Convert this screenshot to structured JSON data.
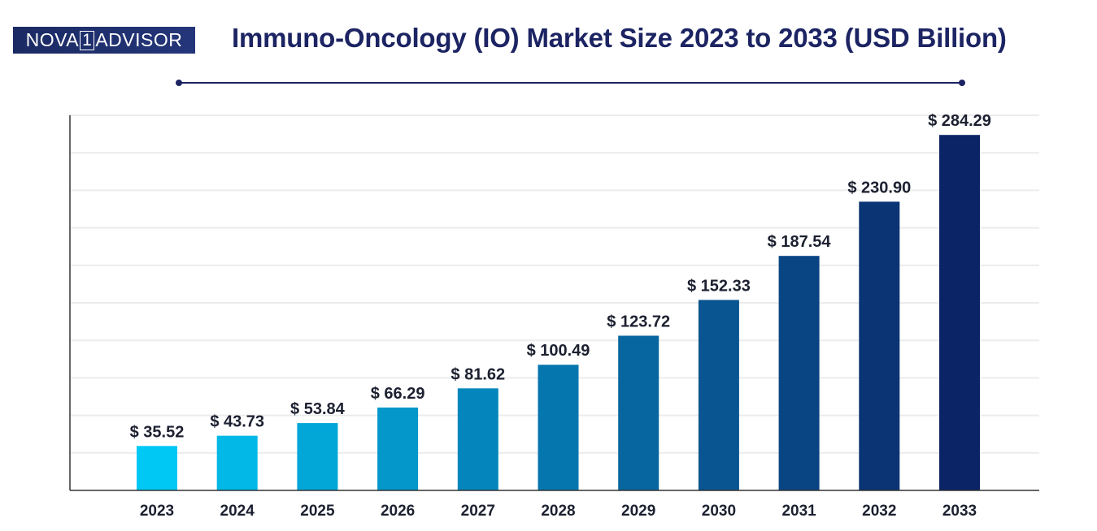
{
  "logo": {
    "part1": "NOVA",
    "part2": "1",
    "part3": "ADVISOR"
  },
  "colors": {
    "title": "#1c2463",
    "bar_start": "#00c8f5",
    "bar_end": "#0b2466",
    "grid": "#ececec",
    "axis": "#333333"
  },
  "chart_data": {
    "type": "bar",
    "title": "Immuno-Oncology (IO) Market Size 2023 to 2033 (USD Billion)",
    "xlabel": "",
    "ylabel": "",
    "categories": [
      "2023",
      "2024",
      "2025",
      "2026",
      "2027",
      "2028",
      "2029",
      "2030",
      "2031",
      "2032",
      "2033"
    ],
    "values": [
      35.52,
      43.73,
      53.84,
      66.29,
      81.62,
      100.49,
      123.72,
      152.33,
      187.54,
      230.9,
      284.29
    ],
    "value_labels": [
      "$ 35.52",
      "$ 43.73",
      "$ 53.84",
      "$ 66.29",
      "$ 81.62",
      "$ 100.49",
      "$ 123.72",
      "$ 152.33",
      "$ 187.54",
      "$ 230.90",
      "$ 284.29"
    ],
    "ylim": [
      0,
      300
    ],
    "grid": true,
    "legend": "none"
  }
}
